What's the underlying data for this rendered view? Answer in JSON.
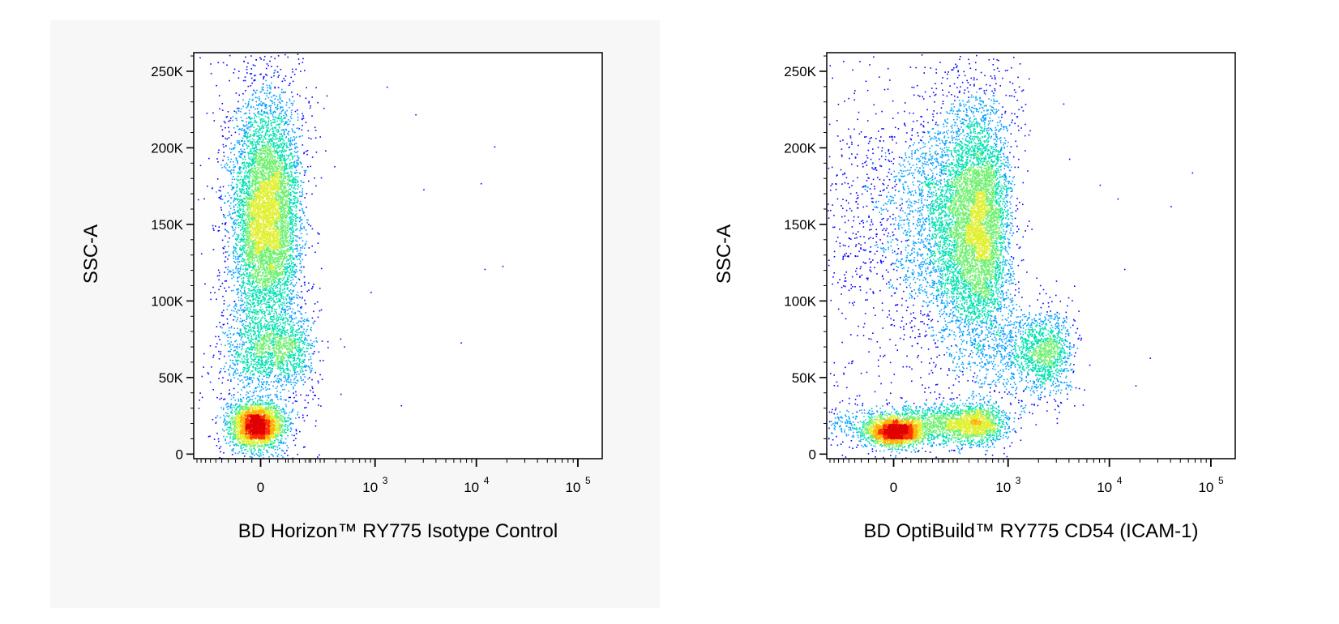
{
  "chart_data": [
    {
      "type": "scatter",
      "subtype": "flow-cytometry-density-dot-plot",
      "title": "",
      "xlabel": "BD Horizon™ RY775 Isotype Control",
      "ylabel": "SSC-A",
      "x_scale": "biexponential",
      "xlim": [
        -300,
        150000
      ],
      "ylim": [
        -3000,
        262144
      ],
      "x_ticks": [
        {
          "value": 0,
          "base": "0",
          "exp": ""
        },
        {
          "value": 1000,
          "base": "10",
          "exp": "3"
        },
        {
          "value": 10000,
          "base": "10",
          "exp": "4"
        },
        {
          "value": 100000,
          "base": "10",
          "exp": "5"
        }
      ],
      "y_ticks": [
        {
          "value": 0,
          "label": "0"
        },
        {
          "value": 50000,
          "label": "50K"
        },
        {
          "value": 100000,
          "label": "100K"
        },
        {
          "value": 150000,
          "label": "150K"
        },
        {
          "value": 200000,
          "label": "200K"
        },
        {
          "value": 250000,
          "label": "250K"
        }
      ],
      "grid": false,
      "color_scale": [
        "#0000ff",
        "#00a0ff",
        "#00e0b0",
        "#70f070",
        "#e0f030",
        "#ffb000",
        "#ff3000",
        "#e00000"
      ],
      "populations": [
        {
          "x_center": 20,
          "x_spread": 60,
          "y_center": 155000,
          "y_spread": 37000,
          "events": 7000
        },
        {
          "x_center": 40,
          "x_spread": 80,
          "y_center": 68000,
          "y_spread": 12000,
          "events": 1500
        },
        {
          "x_center": -15,
          "x_spread": 45,
          "y_center": 19000,
          "y_spread": 7000,
          "events": 3000
        }
      ],
      "outliers": [
        [
          1300,
          240000
        ],
        [
          2500,
          222000
        ],
        [
          15000,
          201000
        ],
        [
          3000,
          173000
        ],
        [
          11000,
          177000
        ],
        [
          12000,
          121000
        ],
        [
          18000,
          123000
        ],
        [
          7000,
          73000
        ],
        [
          900,
          106000
        ],
        [
          1800,
          32000
        ]
      ]
    },
    {
      "type": "scatter",
      "subtype": "flow-cytometry-density-dot-plot",
      "title": "",
      "xlabel": "BD OptiBuild™ RY775 CD54 (ICAM-1)",
      "ylabel": "SSC-A",
      "x_scale": "biexponential",
      "xlim": [
        -300,
        150000
      ],
      "ylim": [
        -3000,
        262144
      ],
      "x_ticks": [
        {
          "value": 0,
          "base": "0",
          "exp": ""
        },
        {
          "value": 1000,
          "base": "10",
          "exp": "3"
        },
        {
          "value": 10000,
          "base": "10",
          "exp": "4"
        },
        {
          "value": 100000,
          "base": "10",
          "exp": "5"
        }
      ],
      "y_ticks": [
        {
          "value": 0,
          "label": "0"
        },
        {
          "value": 50000,
          "label": "50K"
        },
        {
          "value": 100000,
          "label": "100K"
        },
        {
          "value": 150000,
          "label": "150K"
        },
        {
          "value": 200000,
          "label": "200K"
        },
        {
          "value": 250000,
          "label": "250K"
        }
      ],
      "grid": false,
      "color_scale": [
        "#0000ff",
        "#00a0ff",
        "#00e0b0",
        "#70f070",
        "#e0f030",
        "#ffb000",
        "#ff3000",
        "#e00000"
      ],
      "populations": [
        {
          "x_center": 400,
          "x_spread": 250,
          "y_center": 150000,
          "y_spread": 38000,
          "events": 8500
        },
        {
          "x_center": 2000,
          "x_spread": 900,
          "y_center": 66000,
          "y_spread": 13000,
          "events": 1600
        },
        {
          "x_center": 5,
          "x_spread": 50,
          "y_center": 15000,
          "y_spread": 4500,
          "events": 2200
        },
        {
          "x_center": 300,
          "x_spread": 250,
          "y_center": 20000,
          "y_spread": 6000,
          "events": 2500
        }
      ],
      "outliers": [
        [
          3500,
          229000
        ],
        [
          8000,
          176000
        ],
        [
          12000,
          167000
        ],
        [
          40000,
          162000
        ],
        [
          65000,
          184000
        ],
        [
          14000,
          121000
        ],
        [
          25000,
          63000
        ],
        [
          18000,
          45000
        ],
        [
          4000,
          193000
        ]
      ]
    }
  ]
}
